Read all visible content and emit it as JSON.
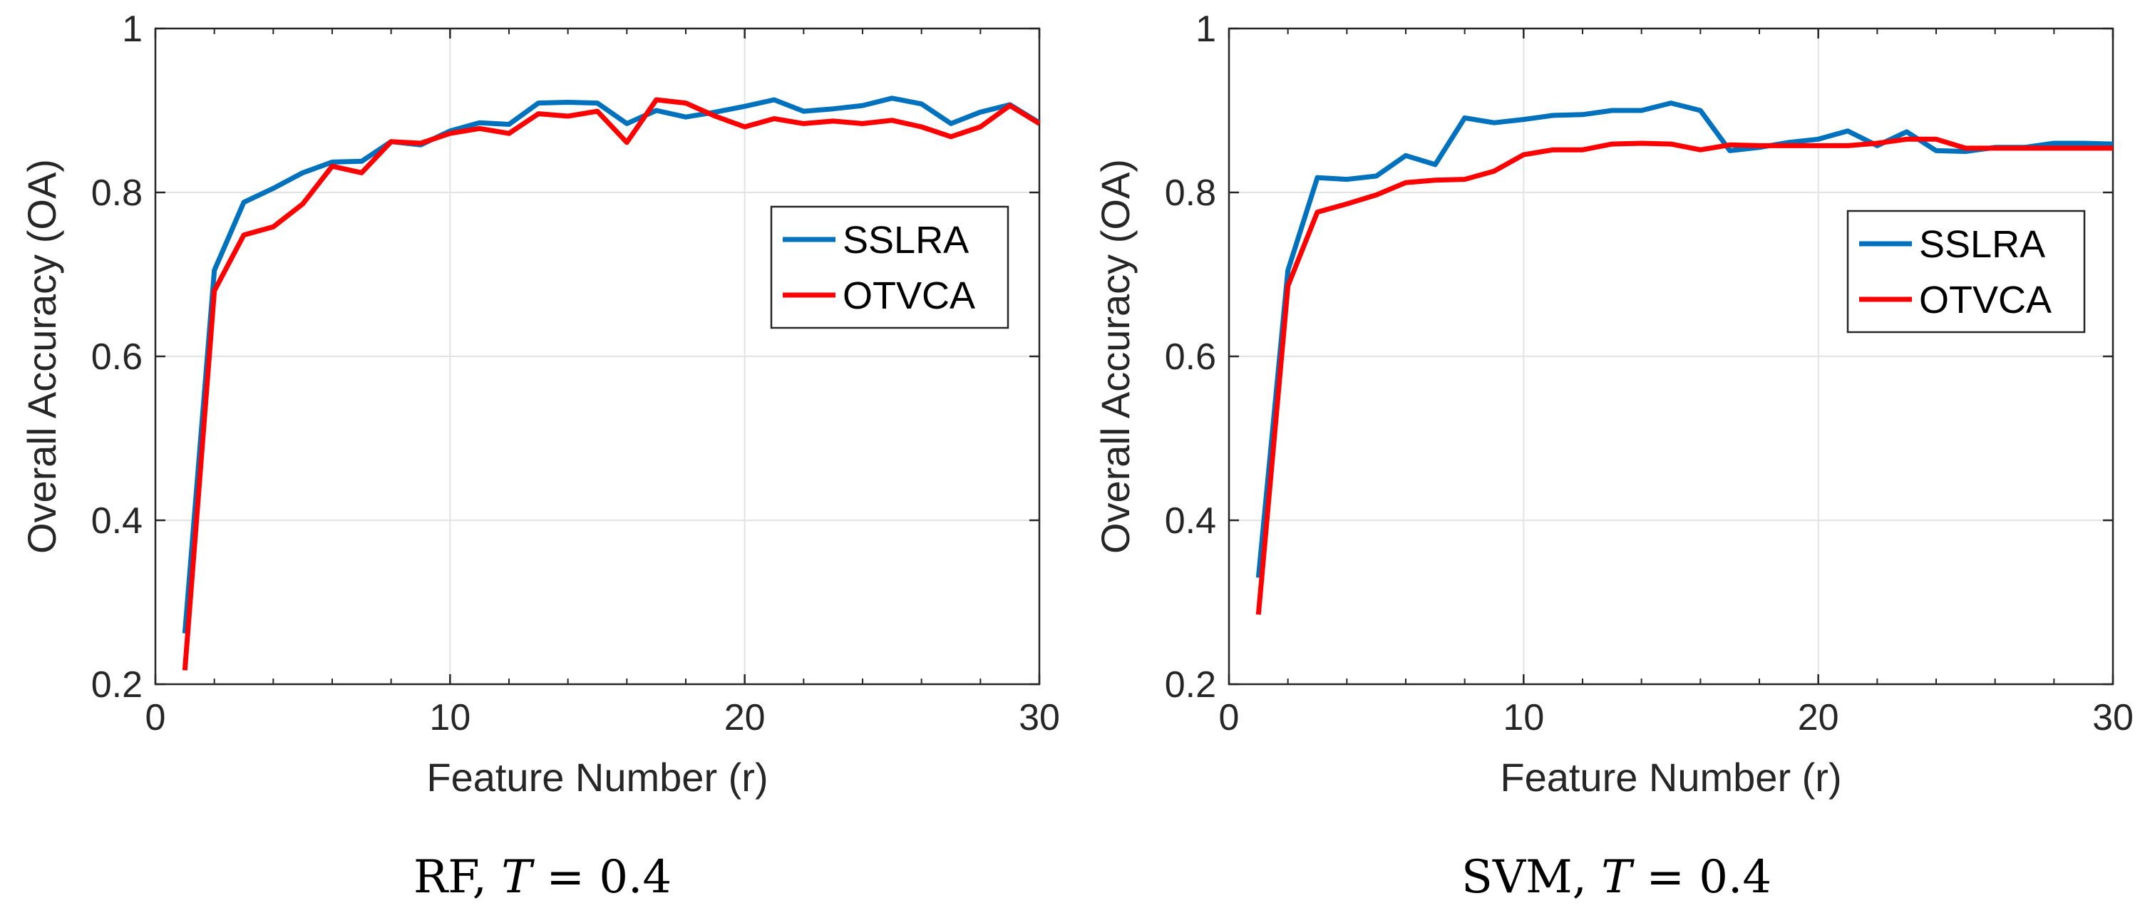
{
  "chart_data": [
    {
      "type": "line",
      "caption": {
        "prefix": "RF, ",
        "var": "T",
        "suffix": " = 0.4"
      },
      "xlabel": "Feature Number (r)",
      "ylabel": "Overall Accuracy (OA)",
      "xlim": [
        0,
        30
      ],
      "ylim": [
        0.2,
        1
      ],
      "xticks": [
        0,
        10,
        20,
        30
      ],
      "yticks": [
        0.2,
        0.4,
        0.6,
        0.8,
        1
      ],
      "ytick_labels": [
        "0.2",
        "0.4",
        "0.6",
        "0.8",
        "1"
      ],
      "grid": true,
      "legend_position": "center-right",
      "x": [
        1,
        2,
        3,
        4,
        5,
        6,
        7,
        8,
        9,
        10,
        11,
        12,
        13,
        14,
        15,
        16,
        17,
        18,
        19,
        20,
        21,
        22,
        23,
        24,
        25,
        26,
        27,
        28,
        29,
        30
      ],
      "series": [
        {
          "name": "SSLRA",
          "color": "#0072BD",
          "values": [
            0.262,
            0.705,
            0.788,
            0.805,
            0.824,
            0.837,
            0.838,
            0.862,
            0.858,
            0.875,
            0.885,
            0.883,
            0.909,
            0.91,
            0.909,
            0.884,
            0.9,
            0.892,
            0.898,
            0.905,
            0.913,
            0.899,
            0.902,
            0.906,
            0.915,
            0.908,
            0.884,
            0.898,
            0.907,
            0.885
          ]
        },
        {
          "name": "OTVCA",
          "color": "#FF0000",
          "values": [
            0.217,
            0.68,
            0.748,
            0.758,
            0.786,
            0.832,
            0.824,
            0.862,
            0.86,
            0.872,
            0.878,
            0.872,
            0.896,
            0.893,
            0.899,
            0.861,
            0.913,
            0.909,
            0.893,
            0.88,
            0.89,
            0.884,
            0.887,
            0.884,
            0.888,
            0.88,
            0.868,
            0.88,
            0.906,
            0.884
          ]
        }
      ]
    },
    {
      "type": "line",
      "caption": {
        "prefix": "SVM, ",
        "var": "T",
        "suffix": " = 0.4"
      },
      "xlabel": "Feature Number (r)",
      "ylabel": "Overall Accuracy (OA)",
      "xlim": [
        0,
        30
      ],
      "ylim": [
        0.2,
        1
      ],
      "xticks": [
        0,
        10,
        20,
        30
      ],
      "yticks": [
        0.2,
        0.4,
        0.6,
        0.8,
        1
      ],
      "ytick_labels": [
        "0.2",
        "0.4",
        "0.6",
        "0.8",
        "1"
      ],
      "grid": true,
      "legend_position": "center-right",
      "x": [
        1,
        2,
        3,
        4,
        5,
        6,
        7,
        8,
        9,
        10,
        11,
        12,
        13,
        14,
        15,
        16,
        17,
        18,
        19,
        20,
        21,
        22,
        23,
        24,
        25,
        26,
        27,
        28,
        29,
        30
      ],
      "series": [
        {
          "name": "SSLRA",
          "color": "#0072BD",
          "values": [
            0.33,
            0.705,
            0.818,
            0.816,
            0.82,
            0.845,
            0.834,
            0.891,
            0.885,
            0.889,
            0.894,
            0.895,
            0.9,
            0.9,
            0.909,
            0.9,
            0.851,
            0.855,
            0.861,
            0.865,
            0.875,
            0.857,
            0.874,
            0.851,
            0.85,
            0.855,
            0.855,
            0.86,
            0.86,
            0.859
          ]
        },
        {
          "name": "OTVCA",
          "color": "#FF0000",
          "values": [
            0.285,
            0.686,
            0.776,
            0.786,
            0.797,
            0.812,
            0.815,
            0.816,
            0.826,
            0.846,
            0.852,
            0.852,
            0.859,
            0.86,
            0.859,
            0.852,
            0.858,
            0.857,
            0.857,
            0.857,
            0.857,
            0.86,
            0.865,
            0.865,
            0.854,
            0.854,
            0.854,
            0.854,
            0.854,
            0.854
          ]
        }
      ]
    }
  ]
}
